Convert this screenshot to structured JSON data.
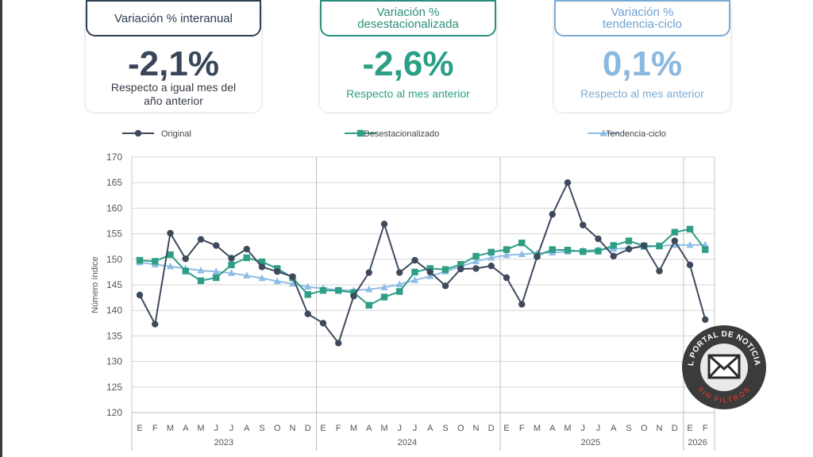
{
  "cards": [
    {
      "title_lines": [
        "Variación % interanual"
      ],
      "value": "-2,1%",
      "desc_lines": [
        "Respecto a igual mes del",
        "año anterior"
      ],
      "color": "#2e3e52"
    },
    {
      "title_lines": [
        "Variación %",
        "desestacionalizada"
      ],
      "value": "-2,6%",
      "desc_lines": [
        "Respecto al mes anterior"
      ],
      "color": "#2a9f86"
    },
    {
      "title_lines": [
        "Variación %",
        "tendencia-ciclo"
      ],
      "value": "0,1%",
      "desc_lines": [
        "Respecto al mes anterior"
      ],
      "color": "#7aabd3"
    }
  ],
  "chart_data": {
    "type": "line",
    "ylabel": "Número índice",
    "ylim": [
      120,
      170
    ],
    "yticks": [
      120,
      125,
      130,
      135,
      140,
      145,
      150,
      155,
      160,
      165,
      170
    ],
    "grid": true,
    "legend_position": "top",
    "x": [
      "E",
      "F",
      "M",
      "A",
      "M",
      "J",
      "J",
      "A",
      "S",
      "O",
      "N",
      "D",
      "E",
      "F",
      "M",
      "A",
      "M",
      "J",
      "J",
      "A",
      "S",
      "O",
      "N",
      "D",
      "E",
      "F",
      "M",
      "A",
      "M",
      "J",
      "J",
      "A",
      "S",
      "O",
      "N",
      "D",
      "E",
      "F"
    ],
    "years": [
      {
        "label": "2023",
        "start": 0,
        "count": 12
      },
      {
        "label": "2024",
        "start": 12,
        "count": 12
      },
      {
        "label": "2025",
        "start": 24,
        "count": 12
      },
      {
        "label": "2026",
        "start": 36,
        "count": 2
      }
    ],
    "series": [
      {
        "name": "Original",
        "color": "#3e4a5c",
        "marker": "circle",
        "values": [
          143.0,
          137.3,
          155.1,
          150.1,
          153.9,
          152.7,
          150.2,
          152.0,
          148.5,
          147.6,
          146.6,
          139.3,
          137.5,
          133.6,
          142.8,
          147.4,
          156.9,
          147.4,
          149.8,
          147.5,
          144.8,
          148.1,
          148.2,
          148.7,
          146.4,
          141.2,
          150.5,
          158.8,
          165.0,
          156.7,
          154.0,
          150.6,
          152.0,
          152.7,
          147.7,
          153.6,
          148.9,
          138.2
        ]
      },
      {
        "name": "Desestacionalizado",
        "color": "#2f9e86",
        "marker": "square",
        "values": [
          149.8,
          149.6,
          150.9,
          147.7,
          145.8,
          146.4,
          148.9,
          150.3,
          149.5,
          148.2,
          146.4,
          143.1,
          143.9,
          143.9,
          143.5,
          141.0,
          142.6,
          143.7,
          147.5,
          148.2,
          148.0,
          149.0,
          150.6,
          151.4,
          151.9,
          153.2,
          150.7,
          151.9,
          151.8,
          151.5,
          151.6,
          152.7,
          153.6,
          152.6,
          152.6,
          155.3,
          155.9,
          151.9
        ]
      },
      {
        "name": "Tendencia-ciclo",
        "color": "#8fbde6",
        "marker": "triangle",
        "values": [
          149.4,
          149.0,
          148.6,
          148.2,
          147.8,
          147.6,
          147.3,
          146.8,
          146.3,
          145.7,
          145.2,
          144.6,
          144.3,
          144.0,
          143.9,
          144.1,
          144.5,
          145.1,
          145.9,
          146.7,
          147.6,
          148.6,
          149.6,
          150.3,
          150.8,
          151.0,
          151.2,
          151.3,
          151.5,
          151.7,
          151.9,
          152.0,
          152.2,
          152.4,
          152.6,
          152.8,
          152.8,
          152.8
        ]
      }
    ]
  },
  "stamp": {
    "top_text": "EL PORTAL DE NOTICIAS",
    "bottom_text": "SIN FILTROS"
  }
}
